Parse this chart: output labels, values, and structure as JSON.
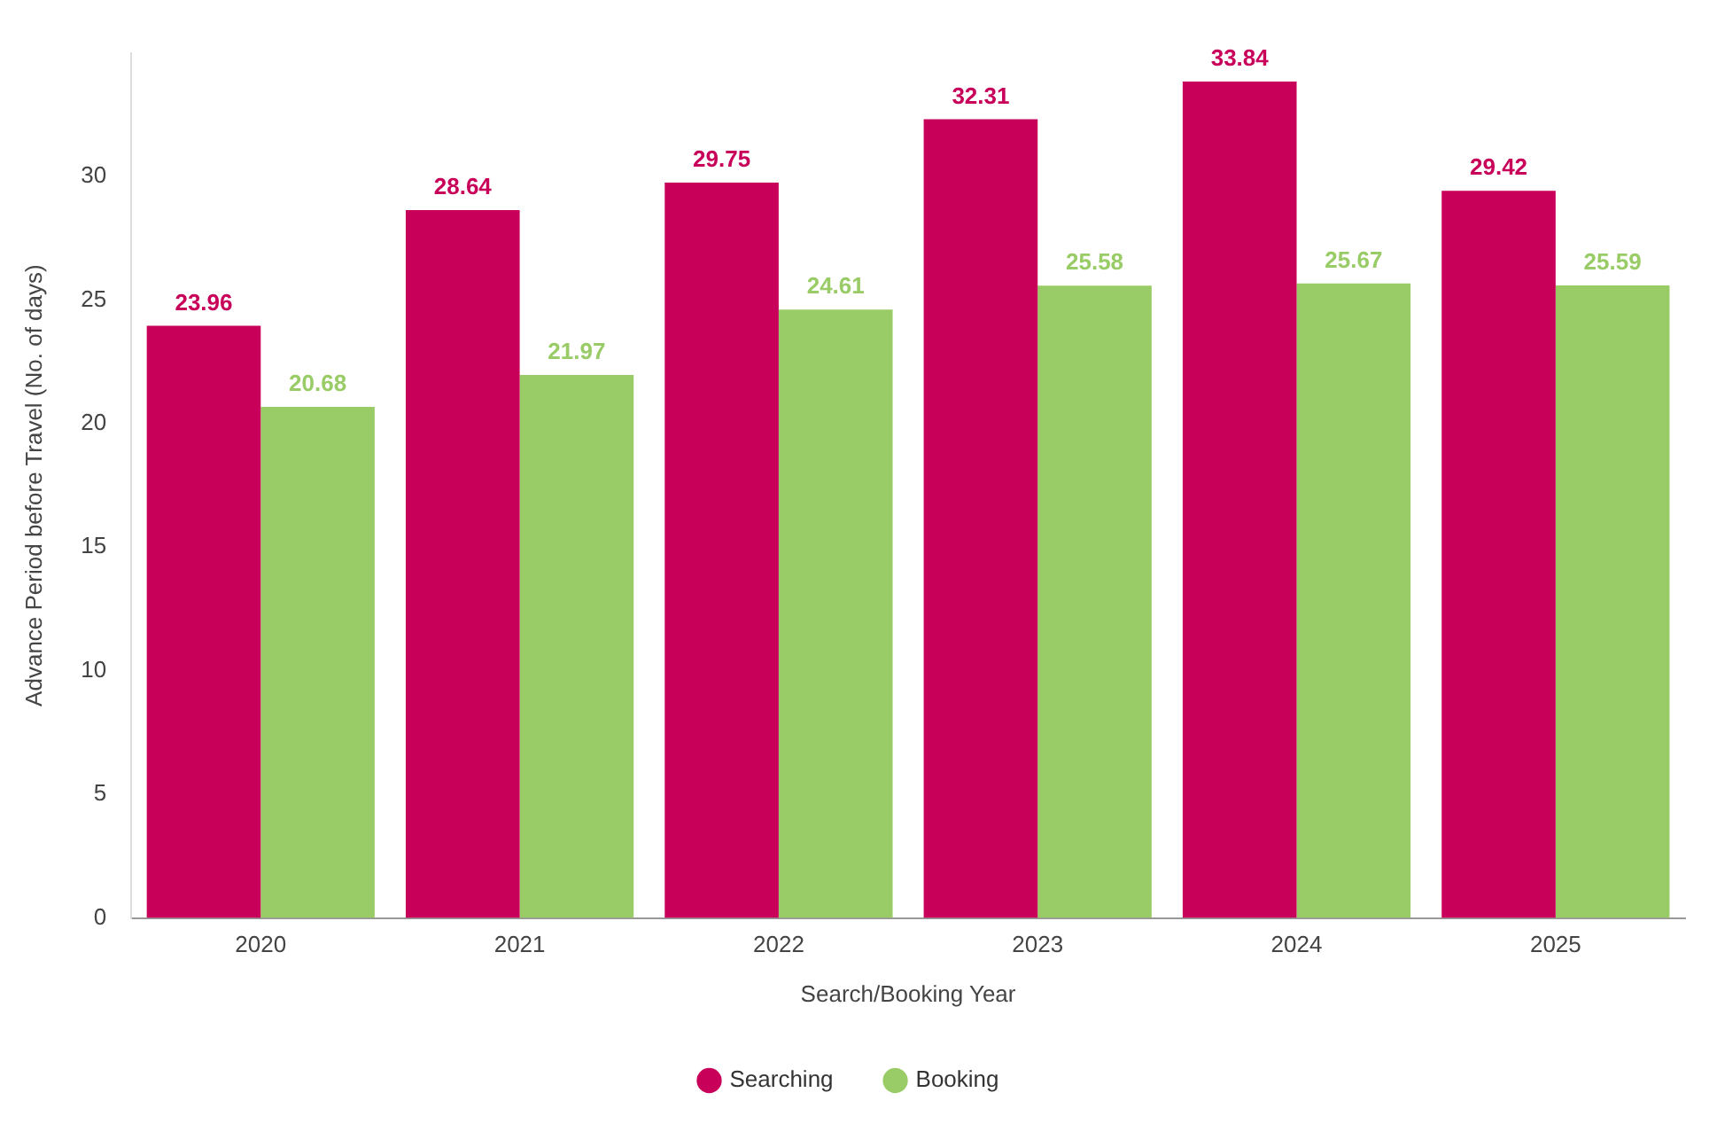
{
  "chart_data": {
    "type": "bar",
    "xlabel": "Search/Booking Year",
    "ylabel": "Advance Period before Travel (No. of days)",
    "categories": [
      "2020",
      "2021",
      "2022",
      "2023",
      "2024",
      "2025"
    ],
    "series": [
      {
        "name": "Searching",
        "color": "#c8005a",
        "values": [
          23.96,
          28.64,
          29.75,
          32.31,
          33.84,
          29.42
        ]
      },
      {
        "name": "Booking",
        "color": "#99cc66",
        "values": [
          20.68,
          21.97,
          24.61,
          25.58,
          25.67,
          25.59
        ]
      }
    ],
    "ylim": [
      0,
      35
    ],
    "yticks": [
      0,
      5,
      10,
      15,
      20,
      25,
      30
    ],
    "grid": false,
    "legend": "bottom",
    "data_labels": true
  }
}
